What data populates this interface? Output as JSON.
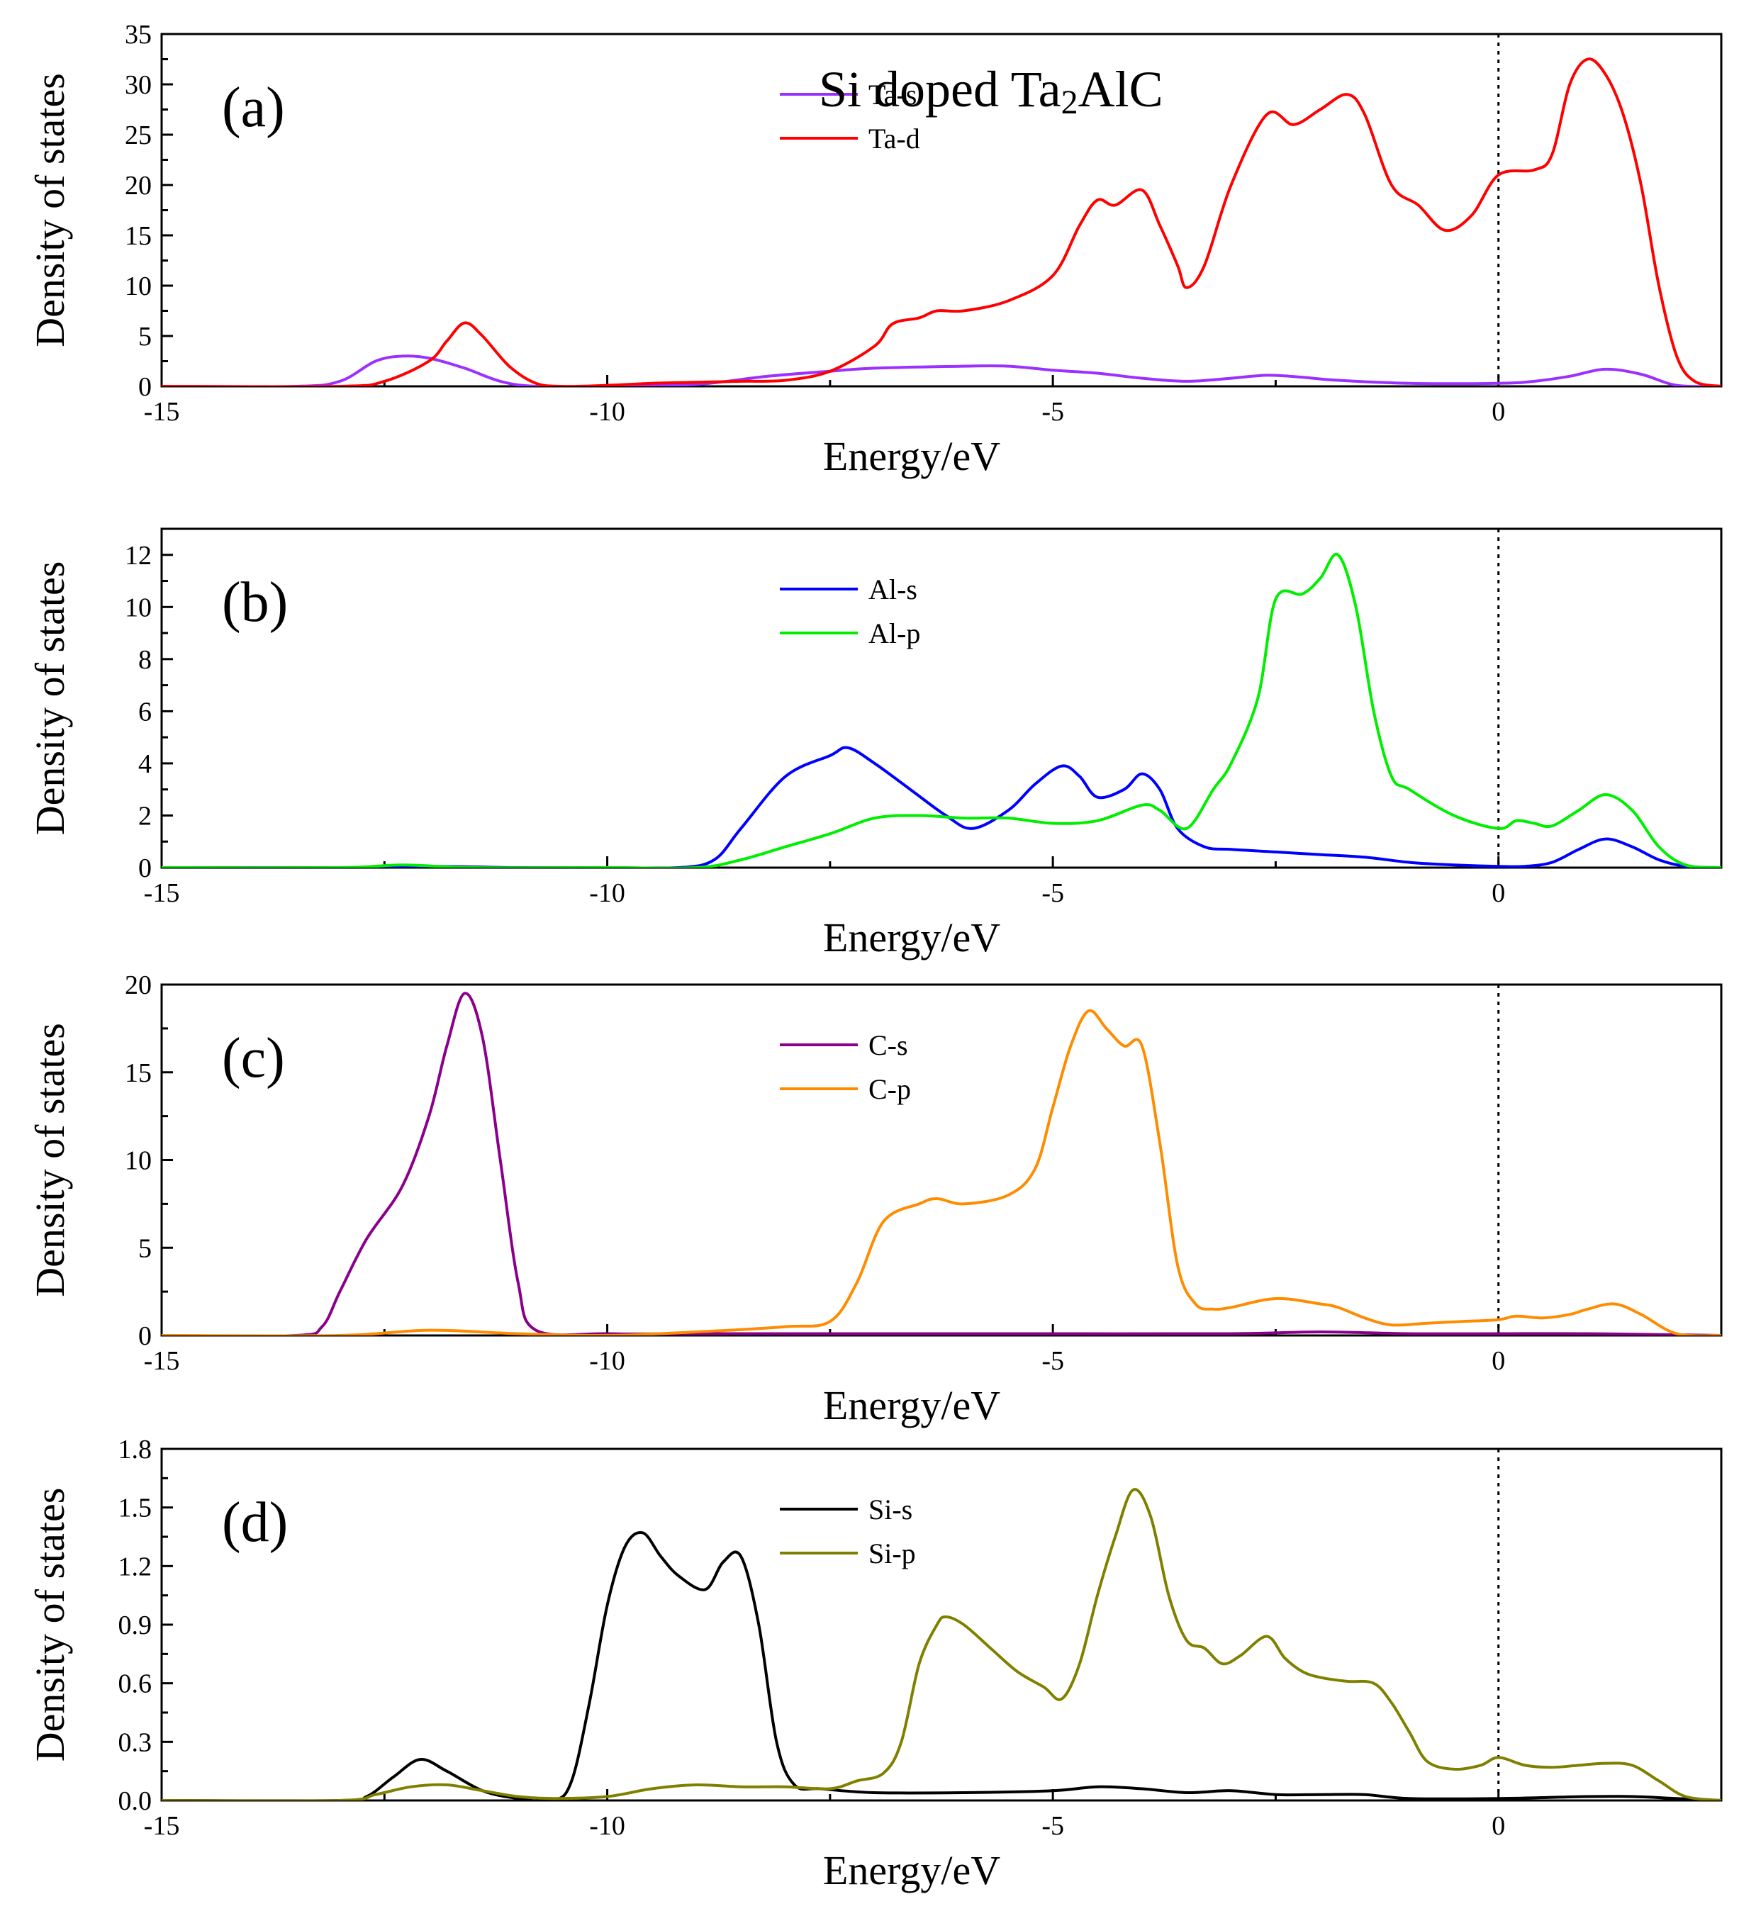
{
  "figure_title": {
    "prefix": "Si doped Ta",
    "sub": "2",
    "suffix": "AlC"
  },
  "chart_data": [
    {
      "type": "line",
      "panel_label": "(a)",
      "xlabel": "Energy/eV",
      "ylabel": "Density of states",
      "xlim": [
        -15,
        2.5
      ],
      "ylim": [
        0,
        35
      ],
      "xticks": [
        -15,
        -10,
        -5,
        0
      ],
      "yticks": [
        0,
        5,
        10,
        15,
        20,
        25,
        30,
        35
      ],
      "ytick_labels": [
        "0",
        "5",
        "10",
        "15",
        "20",
        "25",
        "30",
        "35"
      ],
      "fermi_level": 0,
      "legend_position": "top-center",
      "series": [
        {
          "name": "Ta-s",
          "color": "#9b30ff",
          "x": [
            -15,
            -13.5,
            -13.0,
            -12.6,
            -12.3,
            -12.0,
            -11.6,
            -11.2,
            -10.8,
            -10.0,
            -9.0,
            -8.2,
            -7.5,
            -7.0,
            -6.0,
            -5.5,
            -5.0,
            -4.5,
            -4.0,
            -3.5,
            -3.0,
            -2.6,
            -2.2,
            -1.8,
            -1.0,
            0.0,
            0.4,
            0.8,
            1.2,
            1.6,
            2.0,
            2.5
          ],
          "y": [
            0,
            0,
            0.5,
            2.5,
            3.0,
            2.8,
            1.8,
            0.5,
            0,
            0,
            0.2,
            1.0,
            1.5,
            1.8,
            2.0,
            2.0,
            1.6,
            1.3,
            0.8,
            0.5,
            0.8,
            1.1,
            0.9,
            0.6,
            0.3,
            0.3,
            0.5,
            1.0,
            1.7,
            1.2,
            0.1,
            0
          ]
        },
        {
          "name": "Ta-d",
          "color": "#ff0000",
          "x": [
            -15,
            -13.0,
            -12.5,
            -12.0,
            -11.8,
            -11.6,
            -11.4,
            -11.1,
            -10.8,
            -10.5,
            -10.0,
            -9.5,
            -9.0,
            -8.5,
            -8.0,
            -7.5,
            -7.0,
            -6.8,
            -6.5,
            -6.3,
            -6.0,
            -5.5,
            -5.0,
            -4.7,
            -4.5,
            -4.3,
            -4.0,
            -3.8,
            -3.6,
            -3.5,
            -3.3,
            -3.0,
            -2.6,
            -2.3,
            -2.0,
            -1.7,
            -1.5,
            -1.2,
            -0.9,
            -0.6,
            -0.3,
            0.0,
            0.4,
            0.6,
            0.8,
            1.0,
            1.2,
            1.4,
            1.6,
            1.8,
            2.0,
            2.2,
            2.5
          ],
          "y": [
            0,
            0,
            0.5,
            2.5,
            4.5,
            6.3,
            5.0,
            2.0,
            0.3,
            0,
            0.1,
            0.3,
            0.4,
            0.5,
            0.6,
            1.5,
            4.0,
            6.2,
            6.8,
            7.5,
            7.5,
            8.5,
            11.0,
            16.0,
            18.5,
            18.0,
            19.5,
            16.0,
            12.0,
            9.8,
            12.0,
            20.0,
            27.0,
            26.0,
            27.5,
            29.0,
            27.0,
            20.0,
            18.0,
            15.5,
            17.0,
            21.0,
            21.5,
            23.0,
            30.0,
            32.5,
            31.0,
            27.0,
            20.0,
            10.0,
            3.0,
            0.5,
            0
          ]
        }
      ]
    },
    {
      "type": "line",
      "panel_label": "(b)",
      "xlabel": "Energy/eV",
      "ylabel": "Density of states",
      "xlim": [
        -15,
        2.5
      ],
      "ylim": [
        0,
        13
      ],
      "xticks": [
        -15,
        -10,
        -5,
        0
      ],
      "yticks": [
        0,
        2,
        4,
        6,
        8,
        10,
        12
      ],
      "ytick_labels": [
        "0",
        "2",
        "4",
        "6",
        "8",
        "10",
        "12"
      ],
      "fermi_level": 0,
      "legend_position": "top-center",
      "series": [
        {
          "name": "Al-s",
          "color": "#0000ff",
          "x": [
            -15,
            -13.0,
            -12.0,
            -11.0,
            -10.0,
            -9.2,
            -8.8,
            -8.5,
            -8.0,
            -7.5,
            -7.3,
            -7.0,
            -6.6,
            -6.2,
            -5.9,
            -5.5,
            -5.2,
            -4.9,
            -4.7,
            -4.5,
            -4.2,
            -4.0,
            -3.8,
            -3.6,
            -3.3,
            -3.0,
            -2.5,
            -2.0,
            -1.5,
            -1.0,
            -0.5,
            0.0,
            0.3,
            0.6,
            0.9,
            1.2,
            1.5,
            1.8,
            2.1,
            2.5
          ],
          "y": [
            0,
            0,
            0.05,
            0,
            0,
            0,
            0.3,
            1.5,
            3.5,
            4.3,
            4.6,
            4.0,
            3.0,
            2.0,
            1.5,
            2.2,
            3.2,
            3.9,
            3.5,
            2.7,
            3.0,
            3.6,
            3.0,
            1.5,
            0.8,
            0.7,
            0.6,
            0.5,
            0.4,
            0.2,
            0.1,
            0.05,
            0.05,
            0.2,
            0.7,
            1.1,
            0.8,
            0.3,
            0.05,
            0
          ]
        },
        {
          "name": "Al-p",
          "color": "#00ee00",
          "x": [
            -15,
            -13.0,
            -12.3,
            -11.5,
            -10.0,
            -9.0,
            -8.5,
            -8.0,
            -7.5,
            -7.0,
            -6.5,
            -6.0,
            -5.5,
            -5.0,
            -4.5,
            -4.0,
            -3.8,
            -3.5,
            -3.2,
            -3.0,
            -2.7,
            -2.5,
            -2.2,
            -2.0,
            -1.8,
            -1.6,
            -1.4,
            -1.2,
            -1.0,
            -0.5,
            0.0,
            0.2,
            0.4,
            0.6,
            0.9,
            1.2,
            1.5,
            1.8,
            2.1,
            2.5
          ],
          "y": [
            0,
            0,
            0.1,
            0,
            0,
            0,
            0.3,
            0.8,
            1.3,
            1.9,
            2.0,
            1.9,
            1.9,
            1.7,
            1.8,
            2.4,
            2.2,
            1.5,
            3.0,
            4.0,
            6.5,
            10.3,
            10.5,
            11.1,
            12.0,
            10.0,
            6.0,
            3.5,
            3.0,
            2.0,
            1.5,
            1.8,
            1.7,
            1.6,
            2.2,
            2.8,
            2.2,
            0.8,
            0.1,
            0
          ]
        }
      ]
    },
    {
      "type": "line",
      "panel_label": "(c)",
      "xlabel": "Energy/eV",
      "ylabel": "Density of states",
      "xlim": [
        -15,
        2.5
      ],
      "ylim": [
        0,
        20
      ],
      "xticks": [
        -15,
        -10,
        -5,
        0
      ],
      "yticks": [
        0,
        5,
        10,
        15,
        20
      ],
      "ytick_labels": [
        "0",
        "5",
        "10",
        "15",
        "20"
      ],
      "fermi_level": 0,
      "legend_position": "top-center",
      "series": [
        {
          "name": "C-s",
          "color": "#8b008b",
          "x": [
            -15,
            -13.5,
            -13.2,
            -13.0,
            -12.7,
            -12.3,
            -12.0,
            -11.8,
            -11.6,
            -11.4,
            -11.2,
            -11.0,
            -10.8,
            -10.0,
            -9.0,
            -7.0,
            -5.0,
            -3.0,
            -2.0,
            -1.0,
            0.0,
            1.0,
            2.5
          ],
          "y": [
            0,
            0,
            0.5,
            2.5,
            5.5,
            8.5,
            12.5,
            16.5,
            19.5,
            17.0,
            10.0,
            3.0,
            0.3,
            0.1,
            0.1,
            0.1,
            0.1,
            0.1,
            0.2,
            0.1,
            0.1,
            0.1,
            0
          ]
        },
        {
          "name": "C-p",
          "color": "#ff8c00",
          "x": [
            -15,
            -13.0,
            -12.0,
            -11.0,
            -10.0,
            -9.0,
            -8.0,
            -7.5,
            -7.2,
            -6.9,
            -6.5,
            -6.3,
            -6.0,
            -5.5,
            -5.2,
            -5.0,
            -4.8,
            -4.6,
            -4.4,
            -4.2,
            -4.0,
            -3.8,
            -3.6,
            -3.4,
            -3.2,
            -3.0,
            -2.5,
            -2.0,
            -1.8,
            -1.5,
            -1.2,
            -0.8,
            -0.4,
            0.0,
            0.2,
            0.5,
            0.8,
            1.0,
            1.3,
            1.6,
            2.0,
            2.5
          ],
          "y": [
            0,
            0,
            0.3,
            0.1,
            0,
            0.2,
            0.5,
            0.8,
            3.0,
            6.5,
            7.5,
            7.8,
            7.5,
            8.0,
            9.5,
            13.0,
            16.5,
            18.5,
            17.5,
            16.5,
            16.5,
            11.0,
            4.0,
            1.8,
            1.5,
            1.6,
            2.1,
            1.8,
            1.6,
            1.0,
            0.6,
            0.7,
            0.8,
            0.9,
            1.1,
            1.0,
            1.2,
            1.5,
            1.8,
            1.2,
            0.1,
            0
          ]
        }
      ]
    },
    {
      "type": "line",
      "panel_label": "(d)",
      "xlabel": "Energy/eV",
      "ylabel": "Density of states",
      "xlim": [
        -15,
        2.5
      ],
      "ylim": [
        0,
        1.8
      ],
      "xticks": [
        -15,
        -10,
        -5,
        0
      ],
      "yticks": [
        0,
        0.3,
        0.6,
        0.9,
        1.2,
        1.5,
        1.8
      ],
      "ytick_labels": [
        "0.0",
        "0.3",
        "0.6",
        "0.9",
        "1.2",
        "1.5",
        "1.8"
      ],
      "fermi_level": 0,
      "legend_position": "top-center",
      "series": [
        {
          "name": "Si-s",
          "color": "#000000",
          "x": [
            -15,
            -13.0,
            -12.7,
            -12.4,
            -12.1,
            -11.8,
            -11.4,
            -11.0,
            -10.6,
            -10.4,
            -10.2,
            -10.0,
            -9.8,
            -9.6,
            -9.4,
            -9.2,
            -8.9,
            -8.7,
            -8.5,
            -8.3,
            -8.1,
            -7.9,
            -7.6,
            -7.0,
            -6.0,
            -5.0,
            -4.5,
            -4.0,
            -3.5,
            -3.0,
            -2.5,
            -2.0,
            -1.5,
            -1.0,
            0.0,
            1.0,
            1.5,
            2.0,
            2.5
          ],
          "y": [
            0,
            0,
            0.02,
            0.12,
            0.21,
            0.15,
            0.05,
            0.01,
            0,
            0.1,
            0.5,
            1.0,
            1.3,
            1.37,
            1.25,
            1.15,
            1.08,
            1.22,
            1.25,
            0.9,
            0.3,
            0.08,
            0.06,
            0.04,
            0.04,
            0.05,
            0.07,
            0.06,
            0.04,
            0.05,
            0.03,
            0.03,
            0.03,
            0.01,
            0.01,
            0.02,
            0.02,
            0.01,
            0
          ]
        },
        {
          "name": "Si-p",
          "color": "#808000",
          "x": [
            -15,
            -13.0,
            -12.6,
            -12.2,
            -11.8,
            -11.4,
            -11.0,
            -10.6,
            -10.0,
            -9.5,
            -9.0,
            -8.5,
            -8.0,
            -7.5,
            -7.2,
            -6.9,
            -6.7,
            -6.5,
            -6.3,
            -6.2,
            -6.0,
            -5.7,
            -5.4,
            -5.1,
            -4.9,
            -4.7,
            -4.5,
            -4.3,
            -4.1,
            -3.9,
            -3.7,
            -3.5,
            -3.3,
            -3.1,
            -2.9,
            -2.6,
            -2.4,
            -2.2,
            -2.0,
            -1.7,
            -1.4,
            -1.2,
            -1.0,
            -0.8,
            -0.5,
            -0.2,
            0.0,
            0.3,
            0.6,
            0.9,
            1.2,
            1.5,
            1.8,
            2.1,
            2.5
          ],
          "y": [
            0,
            0,
            0.03,
            0.07,
            0.08,
            0.05,
            0.02,
            0.01,
            0.02,
            0.06,
            0.08,
            0.07,
            0.07,
            0.06,
            0.1,
            0.14,
            0.3,
            0.7,
            0.9,
            0.94,
            0.9,
            0.78,
            0.66,
            0.58,
            0.52,
            0.7,
            1.05,
            1.35,
            1.59,
            1.45,
            1.05,
            0.82,
            0.78,
            0.7,
            0.74,
            0.84,
            0.73,
            0.66,
            0.63,
            0.61,
            0.6,
            0.5,
            0.35,
            0.2,
            0.16,
            0.18,
            0.22,
            0.18,
            0.17,
            0.18,
            0.19,
            0.18,
            0.1,
            0.02,
            0
          ]
        }
      ]
    }
  ]
}
